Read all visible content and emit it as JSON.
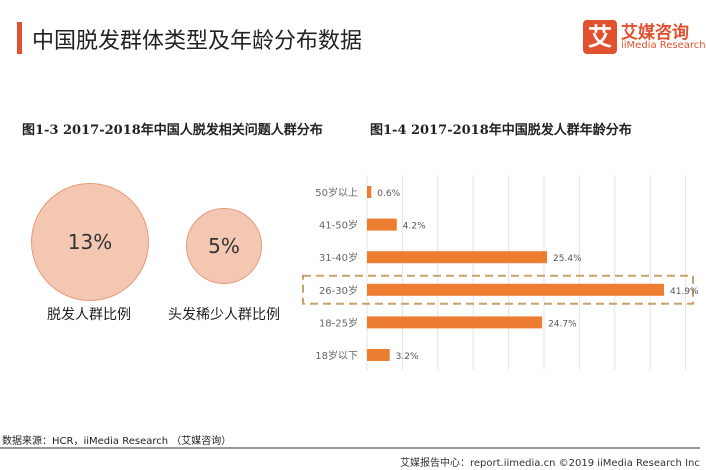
{
  "header": {
    "title": "中国脱发群体类型及年龄分布数据",
    "logo_mark": "艾",
    "logo_cn": "艾媒咨询",
    "logo_en": "iiMedia Research"
  },
  "left": {
    "subtitle": "图1-3 2017-2018年中国人脱发相关问题人群分布",
    "circles": [
      {
        "value": "13%",
        "label": "脱发人群比例"
      },
      {
        "value": "5%",
        "label": "头发稀少人群比例"
      }
    ]
  },
  "chart_data": {
    "type": "bar",
    "orientation": "horizontal",
    "title": "图1-4 2017-2018年中国脱发人群年龄分布",
    "categories": [
      "50岁以上",
      "41-50岁",
      "31-40岁",
      "26-30岁",
      "18-25岁",
      "18岁以下"
    ],
    "values": [
      0.6,
      4.2,
      25.4,
      41.9,
      24.7,
      3.2
    ],
    "labels": [
      "0.6%",
      "4.2%",
      "25.4%",
      "41.9%",
      "24.7%",
      "3.2%"
    ],
    "highlight": "26-30岁",
    "grid": true,
    "bar_color": "#ed7d31",
    "highlight_color": "#c8a26a"
  },
  "footer": {
    "source": "数据来源：HCR，iiMedia Research （艾媒咨询）",
    "copyright": "艾媒报告中心：report.iimedia.cn ©2019 iiMedia Research Inc"
  }
}
